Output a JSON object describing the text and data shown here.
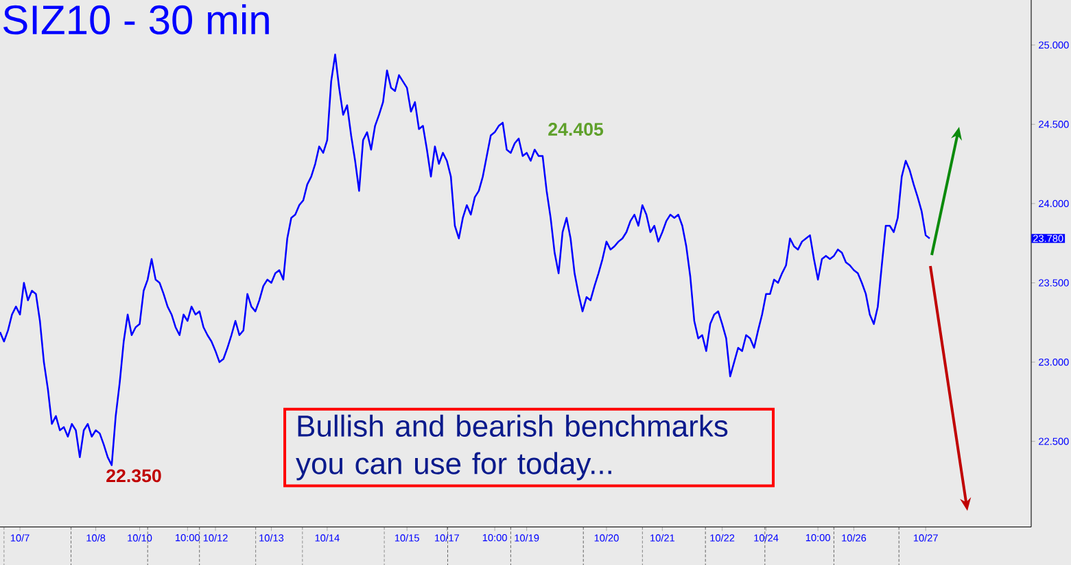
{
  "chart_data": {
    "type": "line",
    "title": "SIZ10 - 30 min",
    "categories": [
      null,
      null,
      null,
      null,
      null,
      "10/7",
      null,
      null,
      null,
      null,
      null,
      null,
      null,
      null,
      null,
      null,
      null,
      null,
      null,
      null,
      null,
      null,
      null,
      null,
      "10/8",
      null,
      null,
      null,
      null,
      null,
      null,
      null,
      null,
      null,
      null,
      "10/10",
      null,
      null,
      null,
      null,
      null,
      null,
      null,
      null,
      null,
      null,
      null,
      "10:00",
      null,
      null,
      null,
      null,
      null,
      null,
      "10/12",
      null,
      null,
      null,
      null,
      null,
      null,
      null,
      null,
      null,
      null,
      null,
      null,
      null,
      "10/13",
      null,
      null,
      null,
      null,
      null,
      null,
      null,
      null,
      null,
      null,
      null,
      null,
      null,
      "10/14",
      null,
      null,
      null,
      null,
      null,
      null,
      null,
      null,
      null,
      null,
      null,
      null,
      null,
      null,
      null,
      null,
      null,
      null,
      null,
      "10/15",
      null,
      null,
      null,
      null,
      null,
      null,
      null,
      null,
      null,
      "10/17",
      null,
      null,
      null,
      null,
      null,
      null,
      null,
      null,
      null,
      null,
      null,
      "10:00",
      null,
      null,
      null,
      null,
      null,
      null,
      null,
      "10/19",
      null,
      null,
      null,
      null,
      null,
      null,
      null,
      null,
      null,
      null,
      null,
      null,
      null,
      null,
      null,
      null,
      null,
      null,
      null,
      "10/20",
      null,
      null,
      null,
      null,
      null,
      null,
      null,
      null,
      null,
      null,
      null,
      null,
      null,
      "10/21",
      null,
      null,
      null,
      null,
      null,
      null,
      null,
      null,
      null,
      null,
      null,
      null,
      null,
      null,
      "10/22",
      null,
      null,
      null,
      null,
      null,
      null,
      null,
      null,
      null,
      null,
      "10/24",
      null,
      null,
      null,
      null,
      null,
      null,
      null,
      null,
      null,
      null,
      null,
      null,
      "10:00",
      null,
      null,
      null,
      null,
      null,
      null,
      null,
      null,
      "10/26",
      null,
      null,
      null,
      null,
      null,
      null,
      null,
      null,
      null,
      null,
      null,
      null,
      null,
      null,
      null,
      null,
      null,
      "10/27",
      null
    ],
    "series": [
      {
        "color": "#0000ff",
        "values": [
          23.19,
          23.13,
          23.2,
          23.3,
          23.35,
          23.3,
          23.5,
          23.39,
          23.45,
          23.43,
          23.26,
          23.0,
          22.83,
          22.61,
          22.66,
          22.57,
          22.59,
          22.53,
          22.61,
          22.57,
          22.4,
          22.57,
          22.61,
          22.53,
          22.57,
          22.55,
          22.48,
          22.4,
          22.35,
          22.66,
          22.87,
          23.13,
          23.3,
          23.17,
          23.22,
          23.24,
          23.45,
          23.52,
          23.65,
          23.52,
          23.5,
          23.43,
          23.35,
          23.3,
          23.22,
          23.17,
          23.3,
          23.26,
          23.35,
          23.3,
          23.32,
          23.22,
          23.17,
          23.13,
          23.07,
          23.0,
          23.02,
          23.09,
          23.17,
          23.26,
          23.17,
          23.2,
          23.43,
          23.35,
          23.32,
          23.39,
          23.48,
          23.52,
          23.5,
          23.56,
          23.58,
          23.52,
          23.78,
          23.91,
          23.93,
          23.99,
          24.02,
          24.12,
          24.17,
          24.25,
          24.36,
          24.32,
          24.4,
          24.77,
          24.94,
          24.73,
          24.56,
          24.62,
          24.43,
          24.27,
          24.08,
          24.4,
          24.45,
          24.34,
          24.49,
          24.56,
          24.64,
          24.84,
          24.73,
          24.71,
          24.81,
          24.77,
          24.73,
          24.58,
          24.64,
          24.47,
          24.49,
          24.34,
          24.17,
          24.36,
          24.25,
          24.32,
          24.27,
          24.17,
          23.86,
          23.78,
          23.91,
          23.99,
          23.93,
          24.04,
          24.08,
          24.17,
          24.3,
          24.43,
          24.45,
          24.49,
          24.51,
          24.34,
          24.32,
          24.38,
          24.41,
          24.3,
          24.32,
          24.27,
          24.34,
          24.3,
          24.3,
          24.08,
          23.91,
          23.69,
          23.56,
          23.82,
          23.91,
          23.78,
          23.56,
          23.43,
          23.32,
          23.41,
          23.39,
          23.48,
          23.56,
          23.65,
          23.76,
          23.71,
          23.73,
          23.76,
          23.78,
          23.82,
          23.89,
          23.93,
          23.86,
          23.99,
          23.93,
          23.82,
          23.86,
          23.76,
          23.82,
          23.89,
          23.93,
          23.91,
          23.93,
          23.86,
          23.73,
          23.54,
          23.26,
          23.15,
          23.17,
          23.07,
          23.24,
          23.3,
          23.32,
          23.24,
          23.15,
          22.91,
          23.0,
          23.09,
          23.07,
          23.17,
          23.15,
          23.09,
          23.2,
          23.3,
          23.43,
          23.43,
          23.52,
          23.5,
          23.56,
          23.61,
          23.78,
          23.73,
          23.71,
          23.76,
          23.78,
          23.8,
          23.65,
          23.52,
          23.65,
          23.67,
          23.65,
          23.67,
          23.71,
          23.69,
          23.63,
          23.61,
          23.58,
          23.56,
          23.5,
          23.43,
          23.3,
          23.24,
          23.35,
          23.61,
          23.86,
          23.86,
          23.82,
          23.91,
          24.17,
          24.27,
          24.21,
          24.12,
          24.04,
          23.95,
          23.8,
          23.78
        ]
      }
    ],
    "ylim": [
      21.96,
      25.42
    ],
    "yticks": [
      {
        "value": 22.5,
        "label": "22.500"
      },
      {
        "value": 23.0,
        "label": "23.000"
      },
      {
        "value": 23.5,
        "label": "23.500"
      },
      {
        "value": 24.0,
        "label": "24.000"
      },
      {
        "value": 24.5,
        "label": "24.500"
      },
      {
        "value": 25.0,
        "label": "25.000"
      }
    ],
    "annotations": [
      "22.350",
      "24.405",
      "Bullish and bearish benchmarks you can use for today...",
      "23.780"
    ]
  }
}
